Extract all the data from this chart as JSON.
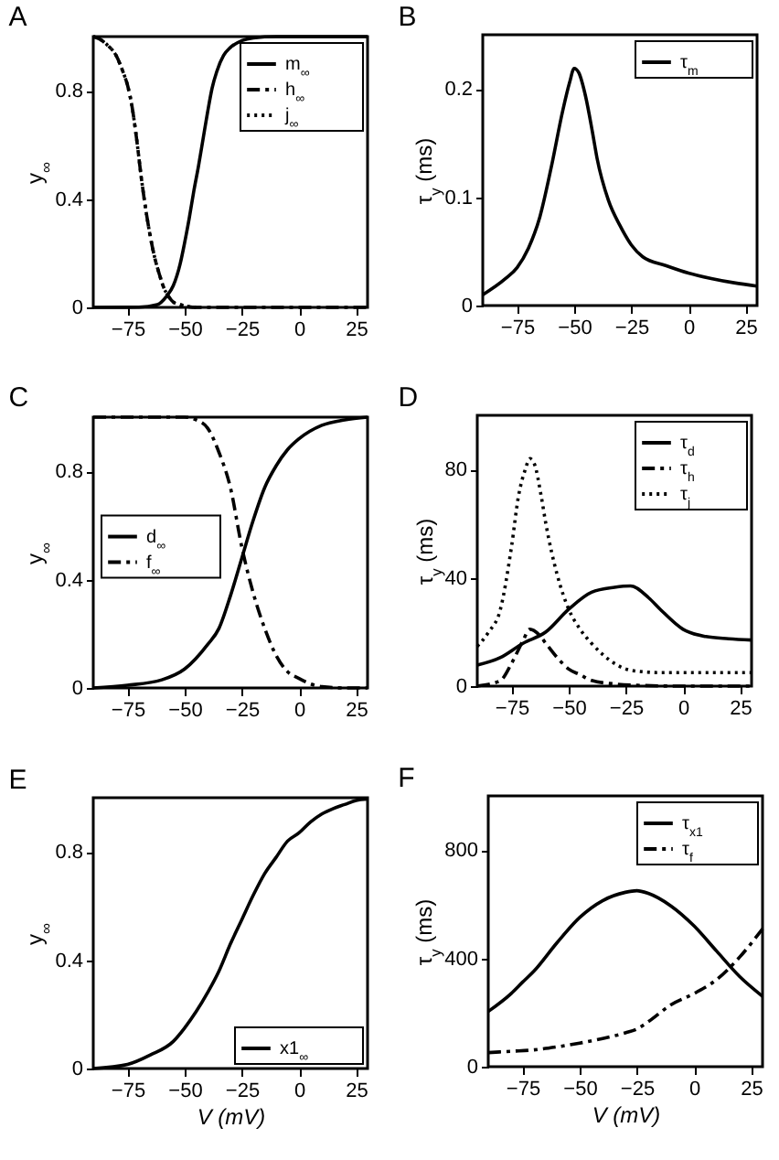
{
  "chart_data": [
    {
      "type": "line",
      "title": "A",
      "ylabel": "y$_{∞}$",
      "xlim": [
        -90,
        30
      ],
      "xticks": [
        -75,
        -50,
        -25,
        0,
        25
      ],
      "ylim": [
        0,
        1
      ],
      "yticks": [
        0,
        0.4,
        0.8
      ],
      "legend": "top right",
      "series": [
        {
          "name": "m$_{∞}$",
          "color": "#000000",
          "line_style": "solid",
          "x": [
            -90,
            -70,
            -62,
            -58,
            -55,
            -52,
            -50,
            -48,
            -46,
            -44,
            -42,
            -40,
            -38,
            -36,
            -33,
            -30,
            -25,
            -20,
            -10,
            30
          ],
          "values": [
            0,
            0.001,
            0.01,
            0.04,
            0.08,
            0.16,
            0.24,
            0.33,
            0.43,
            0.52,
            0.62,
            0.72,
            0.81,
            0.87,
            0.93,
            0.96,
            0.985,
            0.995,
            1,
            1
          ]
        },
        {
          "name": "h$_{∞}$",
          "color": "#000000",
          "line_style": "dashdot",
          "x": [
            -90,
            -87,
            -84,
            -80,
            -77,
            -75,
            -73,
            -71,
            -69,
            -67,
            -65,
            -63,
            -61,
            -59,
            -57,
            -55,
            -52,
            -45,
            30
          ],
          "values": [
            1,
            0.99,
            0.97,
            0.93,
            0.87,
            0.82,
            0.74,
            0.62,
            0.48,
            0.36,
            0.26,
            0.18,
            0.12,
            0.07,
            0.04,
            0.02,
            0.01,
            0,
            0
          ]
        },
        {
          "name": "j$_{∞}$",
          "color": "#000000",
          "line_style": "dotted",
          "x": [
            -90,
            -87,
            -84,
            -80,
            -77,
            -75,
            -73,
            -71,
            -69,
            -67,
            -65,
            -63,
            -61,
            -59,
            -57,
            -55,
            -52,
            -45
          ],
          "values": [
            1,
            0.99,
            0.97,
            0.93,
            0.87,
            0.82,
            0.74,
            0.62,
            0.48,
            0.36,
            0.26,
            0.18,
            0.12,
            0.07,
            0.04,
            0.02,
            0.01,
            0
          ]
        }
      ]
    },
    {
      "type": "line",
      "title": "B",
      "ylabel": "τ$_{y}$ (ms)",
      "xlim": [
        -90,
        30
      ],
      "xticks": [
        -75,
        -50,
        -25,
        0,
        25
      ],
      "ylim": [
        0,
        0.25
      ],
      "yticks": [
        0,
        0.1,
        0.2
      ],
      "legend": "top right",
      "series": [
        {
          "name": "τ$_{m}$",
          "color": "#000000",
          "line_style": "solid",
          "x": [
            -90,
            -80,
            -75,
            -70,
            -65,
            -60,
            -55,
            -52,
            -50,
            -48,
            -45,
            -42,
            -40,
            -35,
            -30,
            -25,
            -20,
            -10,
            0,
            10,
            20,
            30
          ],
          "values": [
            0.01,
            0.025,
            0.035,
            0.053,
            0.082,
            0.128,
            0.18,
            0.206,
            0.219,
            0.215,
            0.193,
            0.16,
            0.136,
            0.097,
            0.074,
            0.056,
            0.045,
            0.037,
            0.03,
            0.025,
            0.021,
            0.018
          ]
        }
      ]
    },
    {
      "type": "line",
      "title": "C",
      "ylabel": "y$_{∞}$",
      "xlim": [
        -90,
        30
      ],
      "xticks": [
        -75,
        -50,
        -25,
        0,
        25
      ],
      "ylim": [
        0,
        1
      ],
      "yticks": [
        0,
        0.4,
        0.8
      ],
      "legend": "left",
      "series": [
        {
          "name": "d$_{∞}$",
          "color": "#000000",
          "line_style": "solid",
          "x": [
            -90,
            -75,
            -60,
            -50,
            -40,
            -35,
            -30,
            -25,
            -20,
            -15,
            -10,
            -5,
            0,
            10,
            20,
            30
          ],
          "values": [
            0,
            0.01,
            0.03,
            0.07,
            0.16,
            0.22,
            0.34,
            0.48,
            0.62,
            0.74,
            0.82,
            0.88,
            0.92,
            0.97,
            0.99,
            1
          ]
        },
        {
          "name": "f$_{∞}$",
          "color": "#000000",
          "line_style": "dashdot",
          "x": [
            -90,
            -50,
            -45,
            -40,
            -35,
            -30,
            -25,
            -20,
            -15,
            -10,
            -5,
            0,
            5,
            10,
            20,
            30
          ],
          "values": [
            1,
            1,
            0.99,
            0.96,
            0.87,
            0.74,
            0.52,
            0.35,
            0.22,
            0.12,
            0.06,
            0.035,
            0.015,
            0.005,
            0,
            0
          ]
        }
      ]
    },
    {
      "type": "line",
      "title": "D",
      "ylabel": "τ$_{y}$ (ms)",
      "xlim": [
        -90,
        30
      ],
      "xticks": [
        -75,
        -50,
        -25,
        0,
        25
      ],
      "ylim": [
        0,
        100
      ],
      "yticks": [
        0,
        40,
        80
      ],
      "legend": "top right",
      "series": [
        {
          "name": "τ$_{d}$",
          "color": "#000000",
          "line_style": "solid",
          "x": [
            -90,
            -80,
            -70,
            -60,
            -50,
            -40,
            -30,
            -23,
            -15,
            -10,
            0,
            10,
            20,
            30
          ],
          "values": [
            7.8,
            10.5,
            15.8,
            20,
            28.4,
            34.7,
            36.5,
            37,
            32.6,
            28.4,
            21,
            18.3,
            17.5,
            17
          ]
        },
        {
          "name": "τ$_{h}$",
          "color": "#000000",
          "line_style": "dashdot",
          "x": [
            -90,
            -80,
            -75,
            -70,
            -67,
            -63,
            -60,
            -55,
            -50,
            -45,
            -40,
            -30,
            -20,
            0,
            30
          ],
          "values": [
            0,
            2,
            8.4,
            16.8,
            21,
            19,
            15.8,
            10.5,
            6.3,
            4.2,
            2.1,
            0.8,
            0.3,
            0,
            0
          ]
        },
        {
          "name": "τ$_{j}$",
          "color": "#000000",
          "line_style": "dotted",
          "x": [
            -90,
            -85,
            -80,
            -75,
            -72,
            -69,
            -67,
            -65,
            -62,
            -60,
            -55,
            -50,
            -45,
            -40,
            -35,
            -30,
            -25,
            -20,
            -10,
            0,
            30
          ],
          "values": [
            14.7,
            20,
            28,
            51.6,
            70,
            80,
            84,
            82,
            70,
            60,
            41,
            28.4,
            21,
            15.8,
            11.6,
            8.4,
            6.3,
            5.5,
            5,
            5,
            5
          ]
        }
      ]
    },
    {
      "type": "line",
      "title": "E",
      "xlabel": "V  (mV)",
      "ylabel": "y$_{∞}$",
      "xlim": [
        -90,
        30
      ],
      "xticks": [
        -75,
        -50,
        -25,
        0,
        25
      ],
      "ylim": [
        0,
        1
      ],
      "yticks": [
        0,
        0.4,
        0.8
      ],
      "legend": "bottom right",
      "series": [
        {
          "name": "x1$_{∞}$",
          "color": "#000000",
          "line_style": "solid",
          "x": [
            -90,
            -75,
            -65,
            -55,
            -50,
            -45,
            -40,
            -35,
            -30,
            -25,
            -20,
            -15,
            -10,
            -5,
            0,
            5,
            10,
            15,
            20,
            25,
            30
          ],
          "values": [
            0,
            0.015,
            0.05,
            0.1,
            0.15,
            0.21,
            0.28,
            0.36,
            0.46,
            0.55,
            0.64,
            0.72,
            0.78,
            0.84,
            0.87,
            0.91,
            0.94,
            0.96,
            0.975,
            0.99,
            0.995
          ]
        }
      ]
    },
    {
      "type": "line",
      "title": "F",
      "xlabel": "V  (mV)",
      "ylabel": "τ$_{y}$ (ms)",
      "xlim": [
        -90,
        30
      ],
      "xticks": [
        -75,
        -50,
        -25,
        0,
        25
      ],
      "ylim": [
        0,
        1000
      ],
      "yticks": [
        0,
        400,
        800
      ],
      "legend": "top right",
      "series": [
        {
          "name": "τ$_{x1}$",
          "color": "#000000",
          "line_style": "solid",
          "x": [
            -90,
            -80,
            -75,
            -70,
            -60,
            -50,
            -40,
            -30,
            -25,
            -20,
            -10,
            0,
            10,
            20,
            30
          ],
          "values": [
            204,
            270,
            312,
            353,
            457,
            551,
            613,
            644,
            650,
            640,
            593,
            520,
            426,
            333,
            260
          ]
        },
        {
          "name": "τ$_{f}$",
          "color": "#000000",
          "line_style": "dashdot",
          "x": [
            -90,
            -80,
            -70,
            -60,
            -50,
            -40,
            -30,
            -25,
            -20,
            -10,
            0,
            10,
            20,
            30
          ],
          "values": [
            52,
            57,
            62,
            73,
            87,
            104,
            125,
            139,
            166,
            229,
            270,
            322,
            405,
            509
          ]
        }
      ]
    }
  ]
}
